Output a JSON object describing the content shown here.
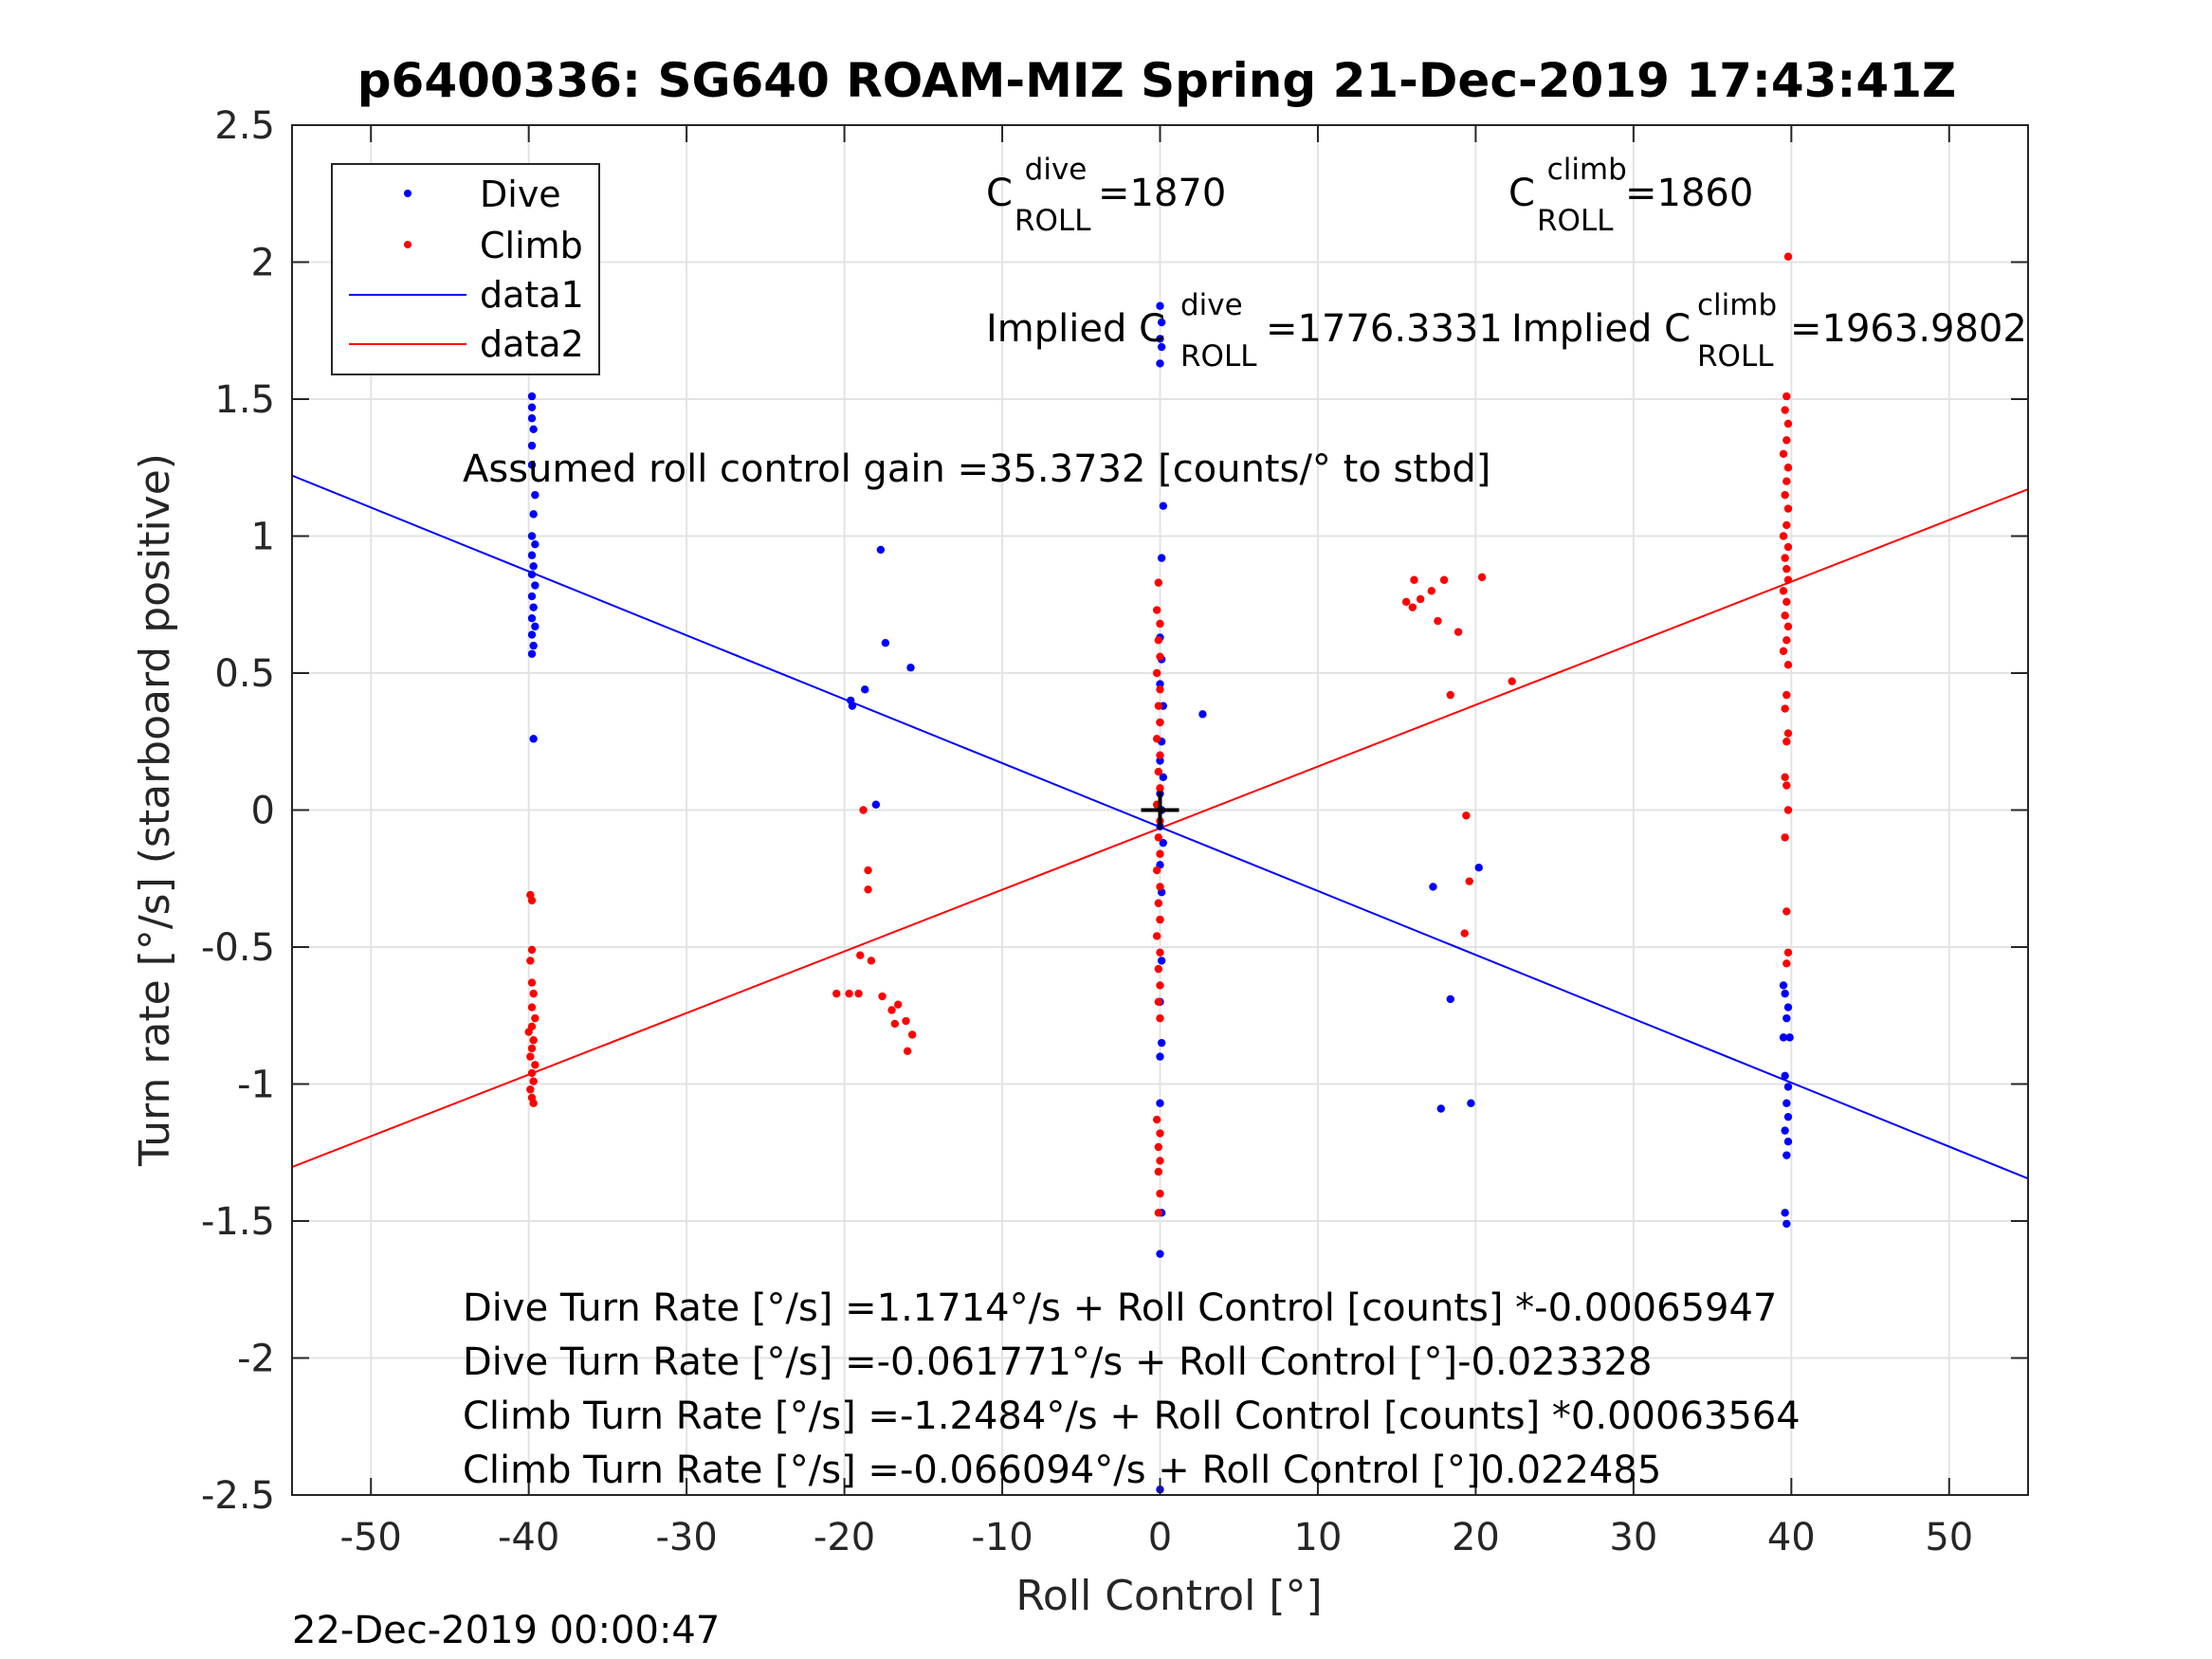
{
  "chart_data": {
    "type": "scatter",
    "title": "p6400336: SG640 ROAM-MIZ Spring 21-Dec-2019 17:43:41Z",
    "xlabel": "Roll Control [°]",
    "ylabel": "Turn rate [°/s] (starboard positive)",
    "xlim": [
      -55,
      55
    ],
    "ylim": [
      -2.5,
      2.5
    ],
    "xticks": [
      -50,
      -40,
      -30,
      -20,
      -10,
      0,
      10,
      20,
      30,
      40,
      50
    ],
    "yticks": [
      -2.5,
      -2,
      -1.5,
      -1,
      -0.5,
      0,
      0.5,
      1,
      1.5,
      2,
      2.5
    ],
    "xtick_labels": [
      "-50",
      "-40",
      "-30",
      "-20",
      "-10",
      "0",
      "10",
      "20",
      "30",
      "40",
      "50"
    ],
    "ytick_labels": [
      "-2.5",
      "-2",
      "-1.5",
      "-1",
      "-0.5",
      "0",
      "0.5",
      "1",
      "1.5",
      "2",
      "2.5"
    ],
    "grid": true,
    "legend_position": "top-left",
    "legend": [
      {
        "label": "Dive",
        "kind": "marker",
        "color": "#0000ff"
      },
      {
        "label": "Climb",
        "kind": "marker",
        "color": "#ff0000"
      },
      {
        "label": "data1",
        "kind": "line",
        "color": "#0000ff"
      },
      {
        "label": "data2",
        "kind": "line",
        "color": "#ff0000"
      }
    ],
    "series": [
      {
        "name": "Dive",
        "kind": "scatter",
        "color": "#0000ff",
        "points": [
          [
            -39.8,
            1.51
          ],
          [
            -39.8,
            1.47
          ],
          [
            -39.8,
            1.43
          ],
          [
            -39.7,
            1.39
          ],
          [
            -39.8,
            1.33
          ],
          [
            -39.8,
            1.26
          ],
          [
            -39.6,
            1.15
          ],
          [
            -39.7,
            1.08
          ],
          [
            -39.8,
            1.0
          ],
          [
            -39.6,
            0.97
          ],
          [
            -39.8,
            0.93
          ],
          [
            -39.7,
            0.89
          ],
          [
            -39.8,
            0.86
          ],
          [
            -39.6,
            0.82
          ],
          [
            -39.8,
            0.78
          ],
          [
            -39.7,
            0.74
          ],
          [
            -39.8,
            0.7
          ],
          [
            -39.6,
            0.67
          ],
          [
            -39.8,
            0.64
          ],
          [
            -39.7,
            0.6
          ],
          [
            -39.8,
            0.57
          ],
          [
            -39.7,
            0.26
          ],
          [
            -19.6,
            0.4
          ],
          [
            -19.5,
            0.38
          ],
          [
            -18.7,
            0.44
          ],
          [
            -17.7,
            0.95
          ],
          [
            -17.4,
            0.61
          ],
          [
            -15.8,
            0.52
          ],
          [
            -18.0,
            0.02
          ],
          [
            0.0,
            1.84
          ],
          [
            0.1,
            1.78
          ],
          [
            0.0,
            1.72
          ],
          [
            0.1,
            1.69
          ],
          [
            0.0,
            1.63
          ],
          [
            0.2,
            1.11
          ],
          [
            0.1,
            0.92
          ],
          [
            0.0,
            0.63
          ],
          [
            0.1,
            0.55
          ],
          [
            0.0,
            0.46
          ],
          [
            0.2,
            0.38
          ],
          [
            0.0,
            0.32
          ],
          [
            0.1,
            0.25
          ],
          [
            0.0,
            0.18
          ],
          [
            0.2,
            0.12
          ],
          [
            0.0,
            0.06
          ],
          [
            0.1,
            0.0
          ],
          [
            0.0,
            -0.06
          ],
          [
            0.2,
            -0.12
          ],
          [
            0.0,
            -0.2
          ],
          [
            0.1,
            -0.3
          ],
          [
            0.0,
            -0.4
          ],
          [
            0.1,
            -0.55
          ],
          [
            0.0,
            -0.7
          ],
          [
            0.1,
            -0.85
          ],
          [
            0.0,
            -0.9
          ],
          [
            0.0,
            -1.07
          ],
          [
            0.1,
            -1.47
          ],
          [
            0.0,
            -1.62
          ],
          [
            0.0,
            -2.48
          ],
          [
            2.7,
            0.35
          ],
          [
            17.3,
            -0.28
          ],
          [
            18.4,
            -0.69
          ],
          [
            17.8,
            -1.09
          ],
          [
            19.7,
            -1.07
          ],
          [
            20.2,
            -0.21
          ],
          [
            39.5,
            -0.64
          ],
          [
            39.6,
            -0.67
          ],
          [
            39.8,
            -0.72
          ],
          [
            39.7,
            -0.76
          ],
          [
            39.5,
            -0.83
          ],
          [
            39.9,
            -0.83
          ],
          [
            39.6,
            -0.97
          ],
          [
            39.8,
            -1.01
          ],
          [
            39.7,
            -1.07
          ],
          [
            39.8,
            -1.12
          ],
          [
            39.6,
            -1.17
          ],
          [
            39.8,
            -1.21
          ],
          [
            39.7,
            -1.26
          ],
          [
            39.6,
            -1.47
          ],
          [
            39.7,
            -1.51
          ]
        ]
      },
      {
        "name": "Climb",
        "kind": "scatter",
        "color": "#ff0000",
        "points": [
          [
            -39.9,
            -0.31
          ],
          [
            -39.8,
            -0.33
          ],
          [
            -39.8,
            -0.51
          ],
          [
            -39.9,
            -0.55
          ],
          [
            -39.8,
            -0.63
          ],
          [
            -39.7,
            -0.67
          ],
          [
            -39.8,
            -0.72
          ],
          [
            -39.6,
            -0.76
          ],
          [
            -39.8,
            -0.79
          ],
          [
            -40.0,
            -0.81
          ],
          [
            -39.7,
            -0.84
          ],
          [
            -39.8,
            -0.87
          ],
          [
            -39.9,
            -0.9
          ],
          [
            -39.6,
            -0.93
          ],
          [
            -39.8,
            -0.96
          ],
          [
            -39.7,
            -0.99
          ],
          [
            -39.9,
            -1.02
          ],
          [
            -39.8,
            -1.05
          ],
          [
            -39.7,
            -1.07
          ],
          [
            -18.8,
            0.0
          ],
          [
            -18.5,
            -0.22
          ],
          [
            -18.5,
            -0.29
          ],
          [
            -19.0,
            -0.53
          ],
          [
            -18.3,
            -0.55
          ],
          [
            -20.5,
            -0.67
          ],
          [
            -19.7,
            -0.67
          ],
          [
            -19.1,
            -0.67
          ],
          [
            -17.6,
            -0.68
          ],
          [
            -17.0,
            -0.73
          ],
          [
            -16.6,
            -0.71
          ],
          [
            -16.8,
            -0.78
          ],
          [
            -16.1,
            -0.77
          ],
          [
            -15.7,
            -0.82
          ],
          [
            -16.0,
            -0.88
          ],
          [
            -0.1,
            0.83
          ],
          [
            -0.2,
            0.73
          ],
          [
            0.0,
            0.68
          ],
          [
            -0.1,
            0.62
          ],
          [
            0.0,
            0.56
          ],
          [
            -0.2,
            0.5
          ],
          [
            0.0,
            0.44
          ],
          [
            -0.1,
            0.38
          ],
          [
            0.0,
            0.32
          ],
          [
            -0.2,
            0.26
          ],
          [
            0.0,
            0.2
          ],
          [
            -0.1,
            0.14
          ],
          [
            0.0,
            0.08
          ],
          [
            -0.2,
            0.02
          ],
          [
            0.0,
            -0.04
          ],
          [
            -0.1,
            -0.1
          ],
          [
            0.0,
            -0.16
          ],
          [
            -0.2,
            -0.22
          ],
          [
            0.0,
            -0.28
          ],
          [
            -0.1,
            -0.34
          ],
          [
            0.0,
            -0.4
          ],
          [
            -0.2,
            -0.46
          ],
          [
            0.0,
            -0.52
          ],
          [
            -0.1,
            -0.58
          ],
          [
            0.0,
            -0.64
          ],
          [
            -0.1,
            -0.7
          ],
          [
            0.0,
            -0.76
          ],
          [
            -0.2,
            -1.13
          ],
          [
            0.0,
            -1.18
          ],
          [
            -0.1,
            -1.23
          ],
          [
            0.0,
            -1.28
          ],
          [
            -0.1,
            -1.32
          ],
          [
            0.0,
            -1.4
          ],
          [
            -0.1,
            -1.47
          ],
          [
            15.6,
            0.76
          ],
          [
            16.1,
            0.84
          ],
          [
            16.0,
            0.74
          ],
          [
            16.5,
            0.77
          ],
          [
            17.2,
            0.8
          ],
          [
            18.0,
            0.84
          ],
          [
            17.6,
            0.69
          ],
          [
            18.9,
            0.65
          ],
          [
            20.4,
            0.85
          ],
          [
            18.4,
            0.42
          ],
          [
            22.3,
            0.47
          ],
          [
            19.4,
            -0.02
          ],
          [
            19.6,
            -0.26
          ],
          [
            19.3,
            -0.45
          ],
          [
            39.8,
            2.02
          ],
          [
            39.7,
            1.51
          ],
          [
            39.6,
            1.46
          ],
          [
            39.8,
            1.41
          ],
          [
            39.7,
            1.35
          ],
          [
            39.5,
            1.3
          ],
          [
            39.8,
            1.25
          ],
          [
            39.7,
            1.2
          ],
          [
            39.6,
            1.15
          ],
          [
            39.8,
            1.1
          ],
          [
            39.7,
            1.04
          ],
          [
            39.5,
            1.0
          ],
          [
            39.8,
            0.96
          ],
          [
            39.6,
            0.92
          ],
          [
            39.7,
            0.88
          ],
          [
            39.8,
            0.84
          ],
          [
            39.5,
            0.8
          ],
          [
            39.7,
            0.76
          ],
          [
            39.6,
            0.71
          ],
          [
            39.8,
            0.67
          ],
          [
            39.7,
            0.62
          ],
          [
            39.5,
            0.58
          ],
          [
            39.8,
            0.53
          ],
          [
            39.7,
            0.42
          ],
          [
            39.6,
            0.37
          ],
          [
            39.8,
            0.28
          ],
          [
            39.7,
            0.25
          ],
          [
            39.6,
            0.12
          ],
          [
            39.7,
            0.09
          ],
          [
            39.8,
            0.0
          ],
          [
            39.6,
            -0.1
          ],
          [
            39.7,
            -0.37
          ],
          [
            39.8,
            -0.52
          ],
          [
            39.7,
            -0.56
          ]
        ]
      },
      {
        "name": "data1",
        "kind": "line",
        "color": "#0000ff",
        "x": [
          -55,
          55
        ],
        "y": [
          1.221,
          -1.345
        ]
      },
      {
        "name": "data2",
        "kind": "line",
        "color": "#ff0000",
        "x": [
          -55,
          55
        ],
        "y": [
          -1.303,
          1.171
        ]
      }
    ],
    "marker": {
      "x": 0,
      "y": 0,
      "symbol": "+",
      "color": "#000000"
    },
    "annotations": {
      "c_roll_dive": {
        "base": "C",
        "sup": "dive",
        "sub": "ROLL",
        "value": " =1870"
      },
      "c_roll_climb": {
        "base": "C",
        "sup": "climb",
        "sub": "ROLL",
        "value": " =1860"
      },
      "implied_dive": {
        "base": "Implied C",
        "sup": "dive",
        "sub": "ROLL",
        "value": " =1776.3331"
      },
      "implied_climb": {
        "base": "Implied C",
        "sup": "climb",
        "sub": "ROLL",
        "value": " =1963.9802"
      },
      "gain": "Assumed roll control gain =35.3732 [counts/° to stbd]",
      "fits": [
        "Dive Turn Rate [°/s] =1.1714°/s + Roll Control [counts] *-0.00065947",
        "Dive Turn Rate [°/s] =-0.061771°/s + Roll Control [°]-0.023328",
        "Climb Turn Rate [°/s] =-1.2484°/s + Roll Control [counts] *0.00063564",
        "Climb Turn Rate [°/s] =-0.066094°/s + Roll Control [°]0.022485"
      ]
    }
  },
  "footer_timestamp": "22-Dec-2019 00:00:47"
}
